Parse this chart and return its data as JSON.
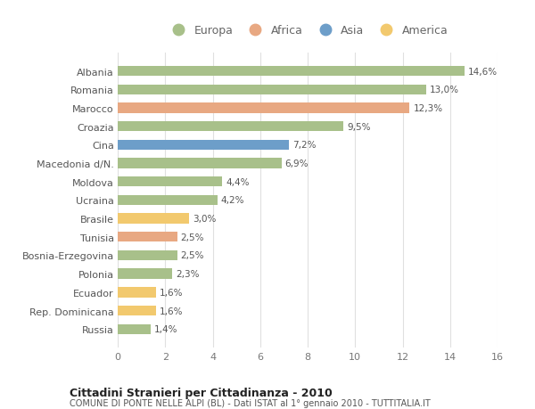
{
  "categories": [
    "Albania",
    "Romania",
    "Marocco",
    "Croazia",
    "Cina",
    "Macedonia d/N.",
    "Moldova",
    "Ucraina",
    "Brasile",
    "Tunisia",
    "Bosnia-Erzegovina",
    "Polonia",
    "Ecuador",
    "Rep. Dominicana",
    "Russia"
  ],
  "values": [
    14.6,
    13.0,
    12.3,
    9.5,
    7.2,
    6.9,
    4.4,
    4.2,
    3.0,
    2.5,
    2.5,
    2.3,
    1.6,
    1.6,
    1.4
  ],
  "labels": [
    "14,6%",
    "13,0%",
    "12,3%",
    "9,5%",
    "7,2%",
    "6,9%",
    "4,4%",
    "4,2%",
    "3,0%",
    "2,5%",
    "2,5%",
    "2,3%",
    "1,6%",
    "1,6%",
    "1,4%"
  ],
  "continents": [
    "Europa",
    "Europa",
    "Africa",
    "Europa",
    "Asia",
    "Europa",
    "Europa",
    "Europa",
    "America",
    "Africa",
    "Europa",
    "Europa",
    "America",
    "America",
    "Europa"
  ],
  "colors": {
    "Europa": "#a8c08a",
    "Africa": "#e8a882",
    "Asia": "#6d9ec9",
    "America": "#f2c96e"
  },
  "xlim": [
    0,
    16
  ],
  "xticks": [
    0,
    2,
    4,
    6,
    8,
    10,
    12,
    14,
    16
  ],
  "title": "Cittadini Stranieri per Cittadinanza - 2010",
  "subtitle": "COMUNE DI PONTE NELLE ALPI (BL) - Dati ISTAT al 1° gennaio 2010 - TUTTITALIA.IT",
  "background_color": "#ffffff",
  "grid_color": "#e0e0e0",
  "legend_order": [
    "Europa",
    "Africa",
    "Asia",
    "America"
  ]
}
